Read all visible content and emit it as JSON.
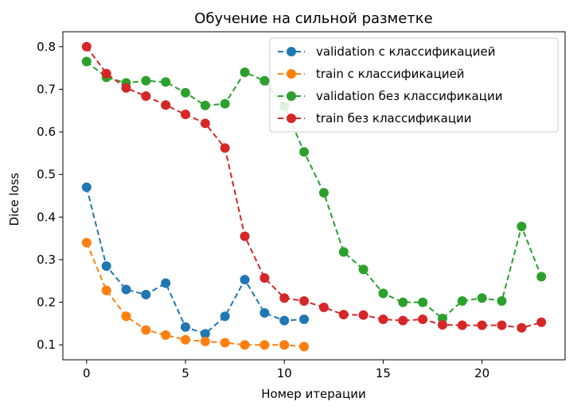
{
  "chart_data": {
    "type": "line",
    "title": "Обучение на сильной разметке",
    "xlabel": "Номер итерации",
    "ylabel": "Dice loss",
    "xlim": [
      -1.2,
      24.2
    ],
    "ylim": [
      0.065,
      0.835
    ],
    "xticks": [
      0,
      5,
      10,
      15,
      20
    ],
    "yticks": [
      0.1,
      0.2,
      0.3,
      0.4,
      0.5,
      0.6,
      0.7,
      0.8
    ],
    "grid": false,
    "legend_position": "upper-right",
    "series": [
      {
        "name": "validation с классификацией",
        "color": "#1f77b4",
        "x": [
          0,
          1,
          2,
          3,
          4,
          5,
          6,
          7,
          8,
          9,
          10,
          11
        ],
        "y": [
          0.47,
          0.285,
          0.23,
          0.218,
          0.245,
          0.142,
          0.126,
          0.167,
          0.253,
          0.175,
          0.157,
          0.16
        ]
      },
      {
        "name": "train с классификацией",
        "color": "#ff7f0e",
        "x": [
          0,
          1,
          2,
          3,
          4,
          5,
          6,
          7,
          8,
          9,
          10,
          11
        ],
        "y": [
          0.34,
          0.228,
          0.167,
          0.135,
          0.123,
          0.112,
          0.108,
          0.105,
          0.1,
          0.1,
          0.1,
          0.096
        ]
      },
      {
        "name": "validation без классификации",
        "color": "#2ca02c",
        "x": [
          0,
          1,
          2,
          3,
          4,
          5,
          6,
          7,
          8,
          9,
          10,
          11,
          12,
          13,
          14,
          15,
          16,
          17,
          18,
          19,
          20,
          21,
          22,
          23
        ],
        "y": [
          0.765,
          0.728,
          0.715,
          0.72,
          0.717,
          0.692,
          0.662,
          0.666,
          0.74,
          0.72,
          0.66,
          0.553,
          0.457,
          0.318,
          0.277,
          0.221,
          0.2,
          0.2,
          0.162,
          0.203,
          0.21,
          0.203,
          0.378,
          0.26
        ]
      },
      {
        "name": "train без классификации",
        "color": "#d62728",
        "x": [
          0,
          1,
          2,
          3,
          4,
          5,
          6,
          7,
          8,
          9,
          10,
          11,
          12,
          13,
          14,
          15,
          16,
          17,
          18,
          19,
          20,
          21,
          22,
          23
        ],
        "y": [
          0.8,
          0.737,
          0.703,
          0.684,
          0.663,
          0.641,
          0.62,
          0.562,
          0.355,
          0.257,
          0.21,
          0.203,
          0.188,
          0.171,
          0.17,
          0.16,
          0.157,
          0.16,
          0.147,
          0.146,
          0.146,
          0.146,
          0.14,
          0.153
        ]
      }
    ]
  }
}
